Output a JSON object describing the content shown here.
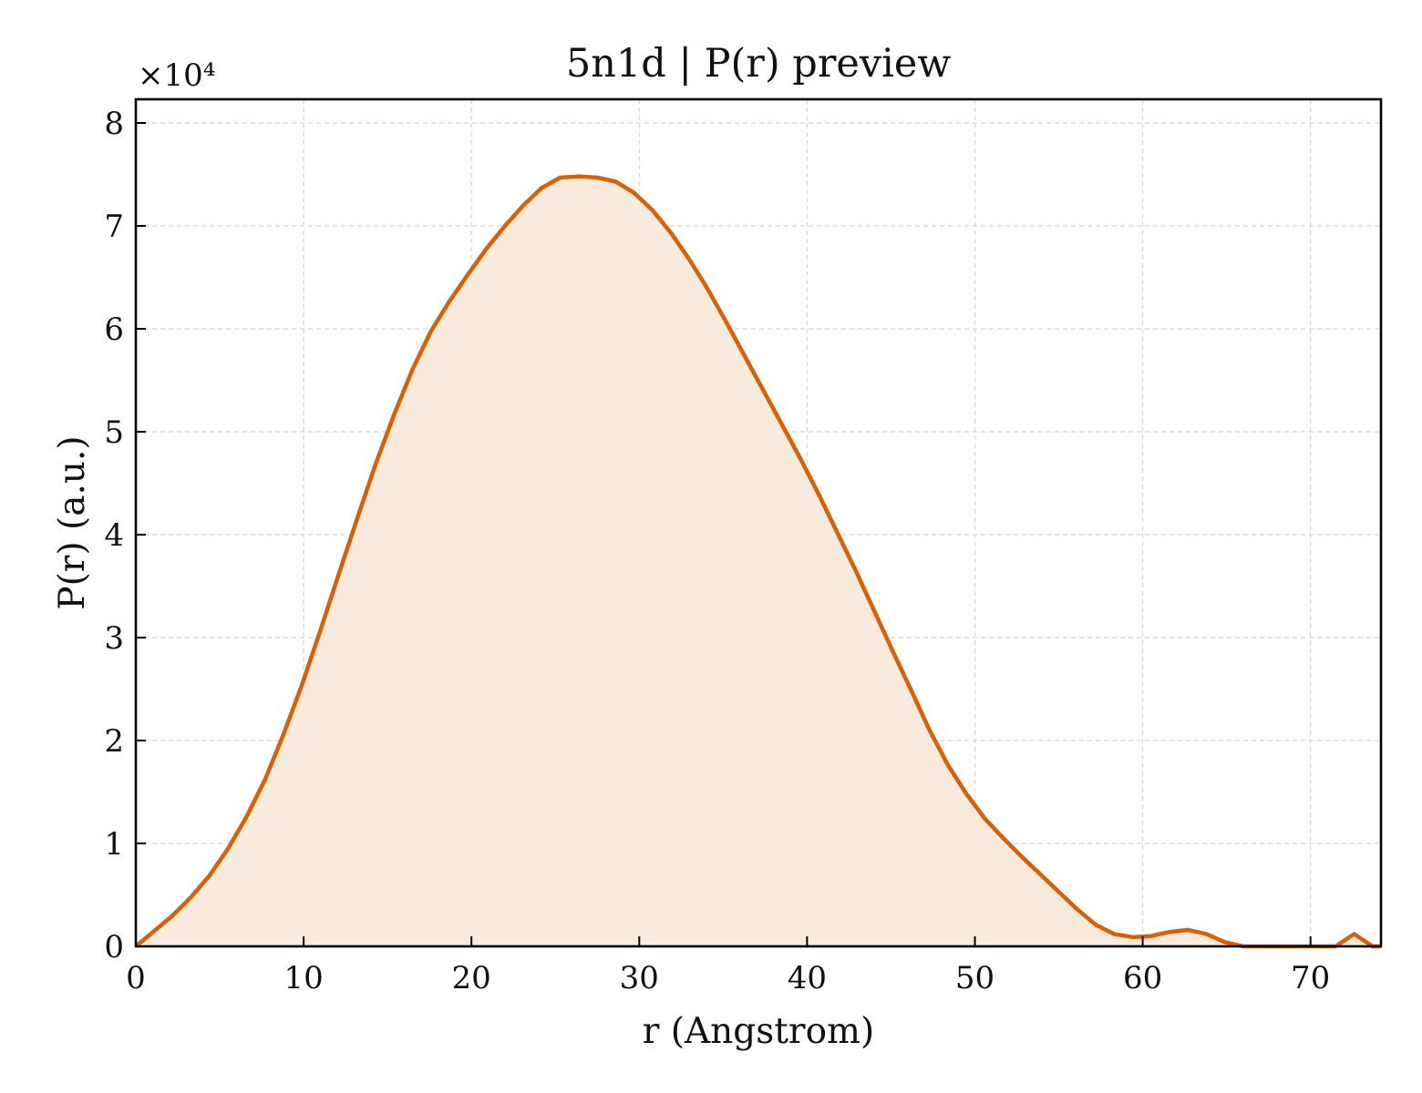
{
  "chart_data": {
    "type": "area",
    "title": "5n1d | P(r) preview",
    "xlabel": "r (Angstrom)",
    "ylabel": "P(r) (a.u.)",
    "y_offset_label": "×10⁴",
    "y_scale": 10000,
    "xlim": [
      0,
      74.2
    ],
    "ylim": [
      0,
      82300
    ],
    "x_ticks": [
      0,
      10,
      20,
      30,
      40,
      50,
      60,
      70
    ],
    "y_ticks": [
      0,
      10000,
      20000,
      30000,
      40000,
      50000,
      60000,
      70000,
      80000
    ],
    "y_tick_labels": [
      "0",
      "1",
      "2",
      "3",
      "4",
      "5",
      "6",
      "7",
      "8"
    ],
    "grid": true,
    "line_color": "#d95f02",
    "fill_color": "#f9eade",
    "series": [
      {
        "x": [
          0,
          1.1,
          2.2,
          3.3,
          4.4,
          5.5,
          6.6,
          7.7,
          8.8,
          9.9,
          11.0,
          12.1,
          13.2,
          14.3,
          15.4,
          16.5,
          17.6,
          18.7,
          19.8,
          20.9,
          22.0,
          23.1,
          24.2,
          25.3,
          26.4,
          27.5,
          28.6,
          29.7,
          30.8,
          31.9,
          33.0,
          34.1,
          35.2,
          36.3,
          37.4,
          38.5,
          39.6,
          40.7,
          41.8,
          42.9,
          44.0,
          45.1,
          46.2,
          47.3,
          48.4,
          49.5,
          50.6,
          51.7,
          52.8,
          53.9,
          55.0,
          56.1,
          57.2,
          58.3,
          59.4,
          60.5,
          61.6,
          62.7,
          63.8,
          64.9,
          66.0,
          67.1,
          68.2,
          69.3,
          70.4,
          71.5,
          72.6,
          73.7,
          74.2
        ],
        "y": [
          0,
          1500,
          3000,
          4800,
          6900,
          9500,
          12600,
          16200,
          20600,
          25400,
          30700,
          36200,
          41600,
          46900,
          51700,
          56100,
          59800,
          62700,
          65300,
          67800,
          70000,
          72000,
          73700,
          74700,
          74800,
          74700,
          74300,
          73200,
          71500,
          69300,
          66700,
          63800,
          60600,
          57300,
          54000,
          50700,
          47400,
          43900,
          40200,
          36500,
          32600,
          28700,
          24900,
          21000,
          17600,
          14800,
          12400,
          10500,
          8700,
          7000,
          5300,
          3600,
          2100,
          1200,
          900,
          1000,
          1400,
          1600,
          1200,
          400,
          0,
          0,
          0,
          0,
          0,
          0,
          1200,
          0,
          0
        ]
      }
    ]
  }
}
